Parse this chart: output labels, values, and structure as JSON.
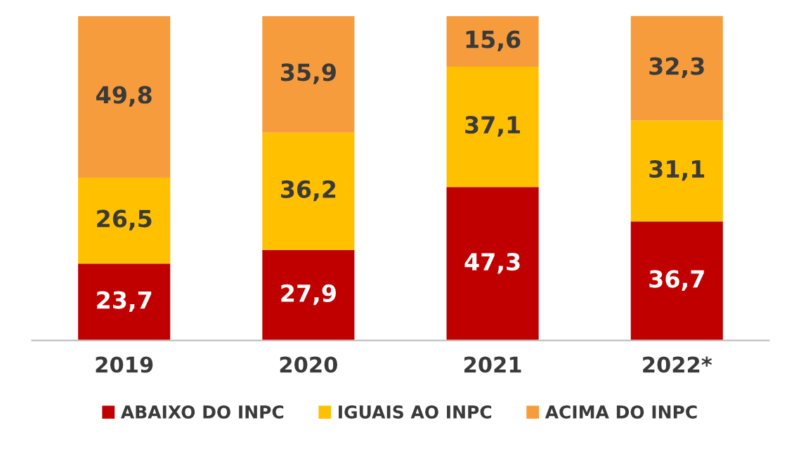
{
  "chart_data": {
    "type": "bar",
    "stacked": true,
    "legend": "bottom",
    "grid": false,
    "categories": [
      "2019",
      "2020",
      "2021",
      "2022*"
    ],
    "series": [
      {
        "name": "ABAIXO DO INPC",
        "color": "#c00000",
        "values": [
          23.7,
          27.9,
          47.3,
          36.7
        ],
        "value_labels": [
          "23,7",
          "27,9",
          "47,3",
          "36,7"
        ]
      },
      {
        "name": "IGUAIS AO INPC",
        "color": "#ffc000",
        "values": [
          26.5,
          36.2,
          37.1,
          31.1
        ],
        "value_labels": [
          "26,5",
          "36,2",
          "37,1",
          "31,1"
        ]
      },
      {
        "name": "ACIMA DO INPC",
        "color": "#f79c3c",
        "values": [
          49.8,
          35.9,
          15.6,
          32.3
        ],
        "value_labels": [
          "49,8",
          "35,9",
          "15,6",
          "32,3"
        ]
      }
    ]
  }
}
